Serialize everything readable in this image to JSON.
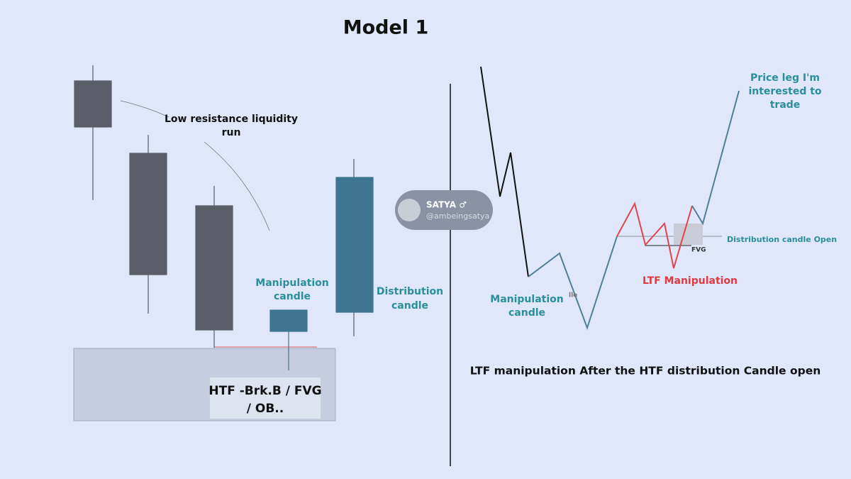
{
  "title": "Model 1",
  "left_panel": {
    "liquidity_run": [
      "Low resistance liquidity",
      "run"
    ],
    "manipulation_label": [
      "Manipulation",
      "candle"
    ],
    "distribution_label": [
      "Distribution",
      "candle"
    ],
    "zone_label": [
      "HTF -Brk.B / FVG",
      "/ OB.."
    ]
  },
  "badge": {
    "name": "SATYA ♂",
    "handle": "@ambeingsatya"
  },
  "right_panel": {
    "price_leg": [
      "Price leg I'm",
      "interested to",
      "trade"
    ],
    "distribution_open": "Distribution candle Open",
    "fvg": "FVG",
    "ltf_manipulation": "LTF Manipulation",
    "manipulation_label": [
      "Manipulation",
      "candle"
    ],
    "partial_text": "lle",
    "caption": "LTF manipulation After the HTF distribution Candle open"
  }
}
